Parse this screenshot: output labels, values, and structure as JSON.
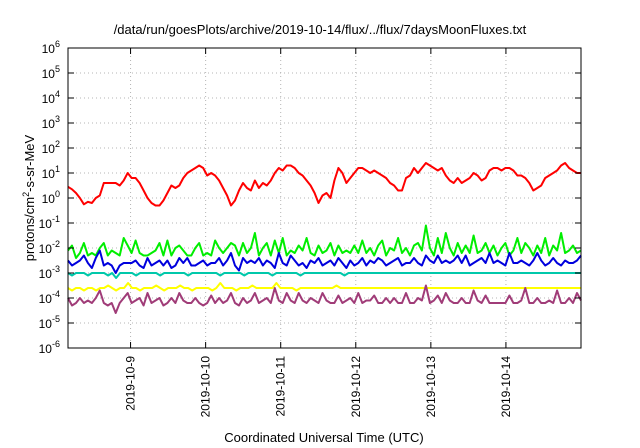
{
  "chart_data": {
    "type": "line",
    "title": "/data/run/goesPlots/archive/2019-10-14/flux/../flux/7daysMoonFluxes.txt",
    "xlabel": "Coordinated Universal Time (UTC)",
    "ylabel": {
      "pre": "protons/cm",
      "sup": "2",
      "post": "-s-sr-MeV"
    },
    "y_scale": "log",
    "ylim_exponents": [
      -6,
      6
    ],
    "y_ticks": [
      {
        "base": "10",
        "exp": "-6"
      },
      {
        "base": "10",
        "exp": "-5"
      },
      {
        "base": "10",
        "exp": "-4"
      },
      {
        "base": "10",
        "exp": "-3"
      },
      {
        "base": "10",
        "exp": "-2"
      },
      {
        "base": "10",
        "exp": "-1"
      },
      {
        "base": "10",
        "exp": "0"
      },
      {
        "base": "10",
        "exp": "1"
      },
      {
        "base": "10",
        "exp": "2"
      },
      {
        "base": "10",
        "exp": "3"
      },
      {
        "base": "10",
        "exp": "4"
      },
      {
        "base": "10",
        "exp": "5"
      },
      {
        "base": "10",
        "exp": "6"
      }
    ],
    "x_range_days": [
      "2019-10-08T04:00",
      "2019-10-15T00:00"
    ],
    "x_ticks": [
      {
        "label": "2019-10-9",
        "date": "2019-10-09"
      },
      {
        "label": "2019-10-10",
        "date": "2019-10-10"
      },
      {
        "label": "2019-10-11",
        "date": "2019-10-11"
      },
      {
        "label": "2019-10-12",
        "date": "2019-10-12"
      },
      {
        "label": "2019-10-13",
        "date": "2019-10-13"
      },
      {
        "label": "2019-10-14",
        "date": "2019-10-14"
      }
    ],
    "grid": true,
    "legend": "none",
    "series": [
      {
        "color": "#ff0000",
        "log10_values": [
          0.45,
          0.35,
          0.2,
          0.0,
          -0.25,
          -0.15,
          -0.2,
          0.0,
          0.1,
          0.6,
          0.6,
          0.6,
          0.6,
          0.5,
          0.7,
          1.0,
          0.8,
          0.8,
          0.6,
          0.3,
          0.0,
          -0.2,
          -0.3,
          -0.3,
          -0.1,
          0.2,
          0.5,
          0.4,
          0.5,
          0.8,
          1.0,
          1.1,
          1.2,
          1.3,
          1.2,
          0.9,
          1.0,
          0.9,
          0.7,
          0.4,
          0.1,
          -0.3,
          -0.1,
          0.3,
          0.6,
          0.4,
          0.3,
          0.7,
          0.4,
          0.6,
          0.5,
          0.7,
          1.0,
          1.2,
          1.1,
          1.3,
          1.3,
          1.2,
          1.0,
          0.9,
          0.7,
          0.5,
          0.2,
          -0.2,
          0.1,
          0.2,
          0.0,
          0.7,
          1.2,
          1.0,
          0.6,
          0.8,
          1.0,
          1.2,
          1.2,
          1.1,
          1.0,
          1.1,
          1.0,
          0.9,
          0.8,
          0.6,
          0.5,
          0.3,
          0.3,
          0.8,
          0.9,
          1.2,
          1.0,
          1.2,
          1.4,
          1.3,
          1.2,
          1.1,
          1.2,
          0.9,
          0.7,
          0.6,
          0.8,
          0.6,
          0.7,
          0.8,
          1.0,
          0.9,
          0.7,
          0.8,
          1.1,
          1.2,
          1.2,
          1.1,
          1.2,
          1.2,
          1.1,
          0.9,
          0.9,
          0.8,
          0.6,
          0.3,
          0.4,
          0.5,
          0.8,
          0.9,
          1.0,
          1.1,
          1.3,
          1.4,
          1.2,
          1.1,
          1.0,
          1.0
        ]
      },
      {
        "color": "#00ee00",
        "log10_values": [
          -2.1,
          -1.9,
          -2.4,
          -2.2,
          -1.8,
          -2.3,
          -2.2,
          -2.3,
          -2.0,
          -1.8,
          -2.3,
          -2.1,
          -2.2,
          -2.3,
          -1.6,
          -1.9,
          -2.2,
          -1.7,
          -2.2,
          -2.3,
          -2.3,
          -2.2,
          -2.1,
          -1.8,
          -2.3,
          -1.7,
          -2.3,
          -2.0,
          -1.9,
          -2.1,
          -2.3,
          -2.3,
          -2.0,
          -1.8,
          -2.3,
          -2.2,
          -2.3,
          -1.7,
          -2.0,
          -2.2,
          -2.0,
          -1.8,
          -1.9,
          -2.3,
          -1.8,
          -2.2,
          -2.0,
          -1.4,
          -2.3,
          -2.0,
          -1.8,
          -2.3,
          -1.7,
          -2.2,
          -1.6,
          -2.3,
          -2.1,
          -2.2,
          -1.9,
          -2.1,
          -1.6,
          -2.2,
          -2.3,
          -1.9,
          -2.2,
          -2.1,
          -1.8,
          -2.3,
          -1.9,
          -2.2,
          -2.1,
          -2.2,
          -1.9,
          -2.2,
          -1.7,
          -2.2,
          -2.0,
          -2.3,
          -1.9,
          -1.7,
          -2.3,
          -2.0,
          -2.1,
          -1.6,
          -2.2,
          -2.0,
          -2.3,
          -1.9,
          -1.8,
          -2.1,
          -1.1,
          -2.0,
          -2.3,
          -1.6,
          -2.2,
          -1.4,
          -2.0,
          -2.3,
          -1.8,
          -2.2,
          -1.9,
          -2.2,
          -1.5,
          -2.2,
          -2.1,
          -1.8,
          -2.2,
          -1.9,
          -2.3,
          -2.0,
          -1.8,
          -2.3,
          -2.1,
          -1.6,
          -2.2,
          -1.8,
          -2.0,
          -2.3,
          -1.9,
          -2.2,
          -1.6,
          -2.3,
          -1.9,
          -2.1,
          -1.4,
          -2.2,
          -2.1,
          -1.9,
          -2.2,
          -2.1
        ]
      },
      {
        "color": "#0000dd",
        "log10_values": [
          -2.5,
          -2.7,
          -2.6,
          -2.5,
          -2.3,
          -2.6,
          -2.8,
          -2.4,
          -2.1,
          -2.7,
          -2.6,
          -2.7,
          -3.0,
          -2.7,
          -2.6,
          -2.6,
          -2.6,
          -2.5,
          -2.7,
          -2.8,
          -2.4,
          -2.7,
          -2.6,
          -2.5,
          -2.7,
          -2.5,
          -2.8,
          -2.7,
          -2.4,
          -2.6,
          -2.4,
          -2.7,
          -2.7,
          -2.6,
          -2.5,
          -2.7,
          -2.6,
          -2.6,
          -2.4,
          -2.7,
          -2.5,
          -2.2,
          -2.7,
          -2.9,
          -2.4,
          -2.6,
          -2.5,
          -2.6,
          -2.4,
          -2.7,
          -2.5,
          -2.6,
          -2.8,
          -2.2,
          -2.6,
          -2.7,
          -2.3,
          -2.5,
          -2.7,
          -2.6,
          -2.8,
          -2.5,
          -2.6,
          -2.4,
          -2.7,
          -2.6,
          -2.5,
          -2.7,
          -2.4,
          -2.6,
          -2.8,
          -2.5,
          -2.7,
          -2.6,
          -2.4,
          -2.7,
          -2.5,
          -2.6,
          -2.4,
          -2.5,
          -2.7,
          -2.6,
          -2.5,
          -2.4,
          -2.7,
          -2.6,
          -2.6,
          -2.4,
          -2.6,
          -2.7,
          -2.3,
          -2.5,
          -2.6,
          -2.3,
          -2.6,
          -2.5,
          -2.6,
          -2.5,
          -2.3,
          -2.6,
          -2.3,
          -2.7,
          -2.6,
          -2.5,
          -2.4,
          -2.6,
          -2.2,
          -2.6,
          -2.5,
          -2.6,
          -2.7,
          -2.2,
          -2.6,
          -2.6,
          -2.5,
          -2.6,
          -2.7,
          -2.5,
          -2.2,
          -2.5,
          -2.7,
          -2.6,
          -2.4,
          -2.6,
          -2.7,
          -2.5,
          -2.6,
          -2.6,
          -2.5,
          -2.3
        ]
      },
      {
        "color": "#00c8aa",
        "log10_values": [
          -3.0,
          -3.1,
          -3.0,
          -3.0,
          -3.0,
          -3.1,
          -3.0,
          -3.0,
          -3.0,
          -3.0,
          -3.1,
          -3.0,
          -3.2,
          -3.0,
          -3.0,
          -3.0,
          -3.0,
          -3.1,
          -3.0,
          -3.0,
          -3.0,
          -3.0,
          -3.0,
          -3.1,
          -3.0,
          -3.0,
          -3.0,
          -3.0,
          -3.0,
          -3.0,
          -3.1,
          -3.0,
          -3.0,
          -3.0,
          -3.0,
          -3.0,
          -3.0,
          -3.0,
          -3.1,
          -3.0,
          -3.0,
          -3.0,
          -3.0,
          -3.0,
          -3.1,
          -3.0,
          -3.0,
          -3.0,
          -3.0,
          -3.0,
          -3.0,
          -3.1,
          -3.0,
          -3.0,
          -3.0,
          -3.0,
          -3.0,
          -3.0,
          -3.1,
          -3.0,
          -3.0,
          -3.0,
          -3.0,
          -3.0,
          -3.0,
          -3.0,
          -3.0,
          -3.0,
          -3.0,
          -3.1,
          -3.0,
          -3.0,
          -3.0,
          -3.0,
          -3.0,
          -3.0,
          -3.0,
          -3.0,
          -3.0,
          -3.0,
          -3.0,
          -3.0,
          -3.0,
          -3.0,
          -3.0,
          -3.0,
          -3.0,
          -3.0,
          -3.0,
          -3.0,
          -3.0,
          -3.0,
          -3.0,
          -3.0,
          -3.0,
          -3.0,
          -3.0,
          -3.0,
          -3.0,
          -3.0,
          -3.0,
          -3.0,
          -3.0,
          -3.0,
          -3.0,
          -3.0,
          -3.0,
          -3.0,
          -3.0,
          -3.0,
          -3.0,
          -3.0,
          -3.0,
          -3.0,
          -3.0,
          -3.0,
          -3.0,
          -3.0,
          -3.0,
          -3.0,
          -3.0,
          -3.0,
          -3.0,
          -3.0,
          -3.0,
          -3.0,
          -3.0,
          -3.0,
          -3.0
        ]
      },
      {
        "color": "#ffff00",
        "log10_values": [
          -3.6,
          -3.7,
          -3.6,
          -3.6,
          -3.7,
          -3.6,
          -3.6,
          -3.7,
          -3.6,
          -3.6,
          -3.5,
          -3.6,
          -3.7,
          -3.6,
          -3.6,
          -3.4,
          -3.6,
          -3.6,
          -3.7,
          -3.6,
          -3.6,
          -3.6,
          -3.5,
          -3.6,
          -3.7,
          -3.6,
          -3.6,
          -3.6,
          -3.5,
          -3.6,
          -3.6,
          -3.7,
          -3.6,
          -3.6,
          -3.6,
          -3.6,
          -3.7,
          -3.6,
          -3.4,
          -3.6,
          -3.6,
          -3.6,
          -3.7,
          -3.6,
          -3.6,
          -3.6,
          -3.5,
          -3.6,
          -3.6,
          -3.6,
          -3.6,
          -3.6,
          -3.4,
          -3.6,
          -3.6,
          -3.6,
          -3.6,
          -3.7,
          -3.6,
          -3.6,
          -3.6,
          -3.6,
          -3.6,
          -3.6,
          -3.6,
          -3.6,
          -3.6,
          -3.5,
          -3.6,
          -3.6,
          -3.6,
          -3.6,
          -3.6,
          -3.6,
          -3.6,
          -3.6,
          -3.6,
          -3.6,
          -3.6,
          -3.6,
          -3.6,
          -3.6,
          -3.6,
          -3.6,
          -3.6,
          -3.6,
          -3.6,
          -3.6,
          -3.6,
          -3.6,
          -3.6,
          -3.6,
          -3.6,
          -3.6,
          -3.6,
          -3.6,
          -3.6,
          -3.6,
          -3.6,
          -3.6,
          -3.6,
          -3.6,
          -3.6,
          -3.6,
          -3.6,
          -3.6,
          -3.6,
          -3.6,
          -3.6,
          -3.6,
          -3.6,
          -3.6,
          -3.6,
          -3.6,
          -3.6,
          -3.6,
          -3.6,
          -3.6,
          -3.6,
          -3.6,
          -3.6,
          -3.6,
          -3.6,
          -3.6,
          -3.6,
          -3.6,
          -3.6,
          -3.6,
          -3.6
        ]
      },
      {
        "color": "#a03c78",
        "log10_values": [
          -4.0,
          -4.3,
          -4.2,
          -4.0,
          -4.2,
          -4.1,
          -4.2,
          -4.0,
          -3.7,
          -4.2,
          -4.3,
          -4.2,
          -4.6,
          -4.2,
          -4.0,
          -3.8,
          -4.2,
          -4.1,
          -4.0,
          -4.3,
          -3.8,
          -4.2,
          -4.1,
          -4.0,
          -4.3,
          -4.2,
          -4.0,
          -4.2,
          -3.8,
          -4.1,
          -4.2,
          -4.2,
          -4.0,
          -4.2,
          -4.3,
          -4.2,
          -3.9,
          -4.2,
          -4.0,
          -4.2,
          -4.1,
          -3.8,
          -4.2,
          -4.3,
          -4.0,
          -4.2,
          -4.1,
          -3.8,
          -4.2,
          -4.1,
          -4.0,
          -4.2,
          -3.6,
          -4.1,
          -4.2,
          -3.8,
          -4.1,
          -4.2,
          -3.8,
          -4.1,
          -4.2,
          -4.0,
          -4.1,
          -4.2,
          -3.8,
          -4.1,
          -4.2,
          -4.2,
          -3.9,
          -4.2,
          -4.1,
          -4.0,
          -4.2,
          -3.8,
          -4.2,
          -4.1,
          -4.1,
          -3.9,
          -4.2,
          -4.2,
          -4.0,
          -4.2,
          -4.0,
          -4.2,
          -4.2,
          -3.8,
          -4.2,
          -4.2,
          -4.0,
          -4.1,
          -3.5,
          -4.2,
          -4.1,
          -3.9,
          -4.2,
          -3.8,
          -4.1,
          -4.2,
          -4.2,
          -4.0,
          -4.2,
          -4.2,
          -3.7,
          -4.1,
          -4.2,
          -3.9,
          -4.2,
          -4.2,
          -4.2,
          -4.2,
          -4.2,
          -3.9,
          -4.2,
          -4.2,
          -4.1,
          -3.6,
          -4.2,
          -4.2,
          -4.0,
          -4.2,
          -4.2,
          -4.1,
          -4.2,
          -3.7,
          -4.2,
          -4.2,
          -4.0,
          -4.2,
          -3.8,
          -4.1
        ]
      }
    ]
  }
}
